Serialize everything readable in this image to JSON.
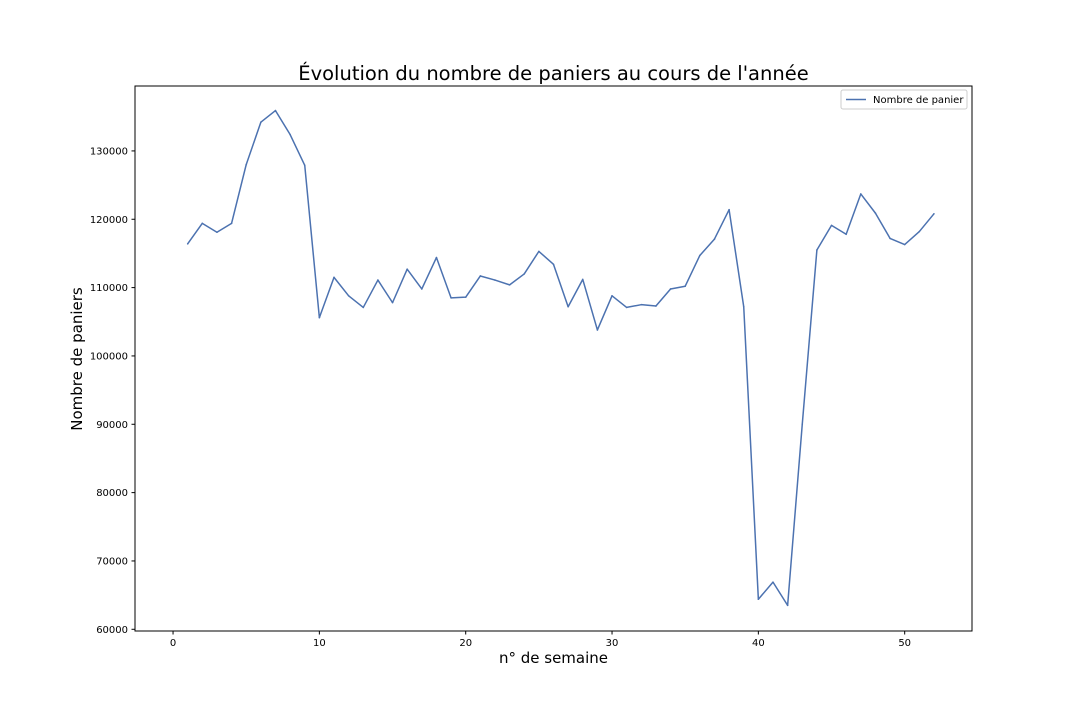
{
  "chart_data": {
    "type": "line",
    "title": "Évolution du nombre de paniers au cours de l'année",
    "xlabel": "n° de semaine",
    "ylabel": "Nombre de paniers",
    "xlim": [
      -2.6,
      54.6
    ],
    "ylim": [
      59750,
      139500
    ],
    "xticks": [
      0,
      10,
      20,
      30,
      40,
      50
    ],
    "xtick_labels": [
      "0",
      "10",
      "20",
      "30",
      "40",
      "50"
    ],
    "yticks": [
      60000,
      70000,
      80000,
      90000,
      100000,
      110000,
      120000,
      130000
    ],
    "ytick_labels": [
      "60000",
      "70000",
      "80000",
      "90000",
      "100000",
      "110000",
      "120000",
      "130000"
    ],
    "grid": false,
    "legend_position": "top-right",
    "series": [
      {
        "name": "Nombre de panier",
        "color": "#4c72b0",
        "x": [
          1,
          2,
          3,
          4,
          5,
          6,
          7,
          8,
          9,
          10,
          11,
          12,
          13,
          14,
          15,
          16,
          17,
          18,
          19,
          20,
          21,
          22,
          23,
          24,
          25,
          26,
          27,
          28,
          29,
          30,
          31,
          32,
          33,
          34,
          35,
          36,
          37,
          38,
          39,
          40,
          41,
          42,
          43,
          44,
          45,
          46,
          47,
          48,
          49,
          50,
          51,
          52
        ],
        "y": [
          116400,
          119400,
          118100,
          119400,
          128000,
          134200,
          135900,
          132400,
          127900,
          105600,
          111500,
          108800,
          107100,
          111100,
          107800,
          112700,
          109800,
          114400,
          108500,
          108600,
          111700,
          111100,
          110400,
          112000,
          115300,
          113400,
          107200,
          111200,
          103800,
          108800,
          107100,
          107500,
          107300,
          109800,
          110200,
          114700,
          117100,
          121400,
          107200,
          64400,
          66900,
          63500,
          90000,
          115500,
          119100,
          117800,
          123700,
          120900,
          117200,
          116300,
          118200,
          120800
        ]
      }
    ]
  }
}
